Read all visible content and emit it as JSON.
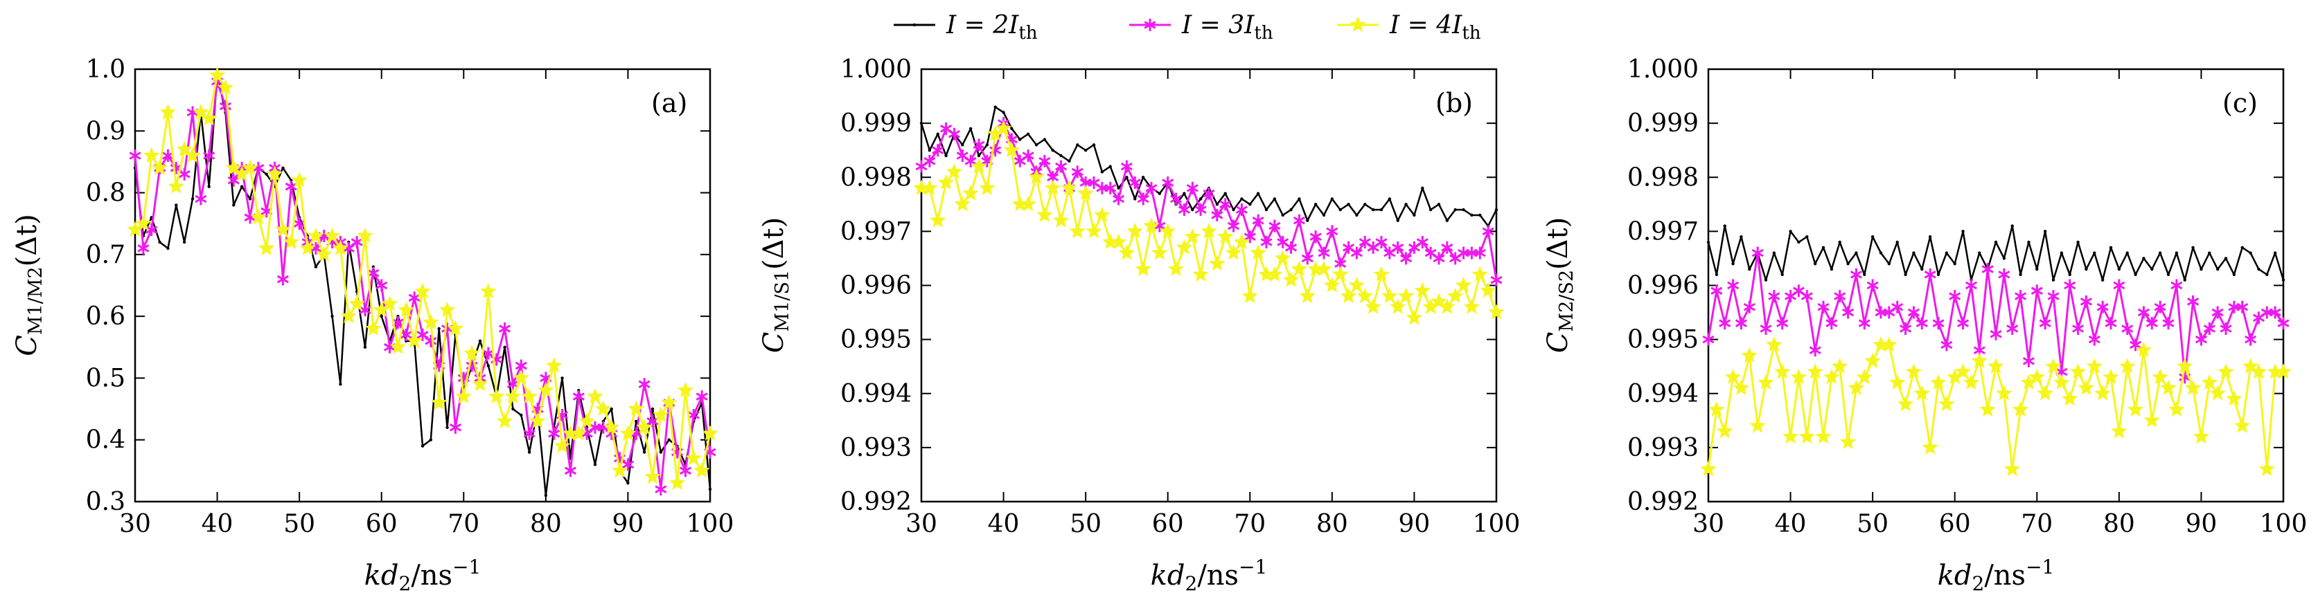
{
  "chart_data": [
    {
      "type": "line",
      "panel_label": "(a)",
      "xlabel": "kd2/ns−1",
      "ylabel": "CM1/M2(Δt)",
      "x": [
        30,
        31,
        32,
        33,
        34,
        35,
        36,
        37,
        38,
        39,
        40,
        41,
        42,
        43,
        44,
        45,
        46,
        47,
        48,
        49,
        50,
        51,
        52,
        53,
        54,
        55,
        56,
        57,
        58,
        59,
        60,
        61,
        62,
        63,
        64,
        65,
        66,
        67,
        68,
        69,
        70,
        71,
        72,
        73,
        74,
        75,
        76,
        77,
        78,
        79,
        80,
        81,
        82,
        83,
        84,
        85,
        86,
        87,
        88,
        89,
        90,
        91,
        92,
        93,
        94,
        95,
        96,
        97,
        98,
        99,
        100
      ],
      "xlim": [
        30,
        100
      ],
      "ylim": [
        0.3,
        1.0
      ],
      "xticks": [
        "30",
        "40",
        "50",
        "60",
        "70",
        "80",
        "90",
        "100"
      ],
      "yticks": [
        "0.3",
        "0.4",
        "0.5",
        "0.6",
        "0.7",
        "0.8",
        "0.9",
        "1.0"
      ],
      "series": [
        {
          "name": "I = 2Ith",
          "color": "#000000",
          "marker": "dot",
          "values": [
            0.84,
            0.73,
            0.76,
            0.72,
            0.71,
            0.78,
            0.72,
            0.79,
            0.93,
            0.81,
            0.99,
            0.93,
            0.78,
            0.81,
            0.79,
            0.84,
            0.83,
            0.81,
            0.84,
            0.82,
            0.76,
            0.73,
            0.68,
            0.7,
            0.6,
            0.49,
            0.72,
            0.64,
            0.55,
            0.68,
            0.6,
            0.56,
            0.6,
            0.56,
            0.56,
            0.39,
            0.4,
            0.58,
            0.42,
            0.57,
            0.48,
            0.52,
            0.56,
            0.52,
            0.47,
            0.55,
            0.45,
            0.44,
            0.38,
            0.45,
            0.31,
            0.42,
            0.5,
            0.37,
            0.48,
            0.42,
            0.36,
            0.43,
            0.45,
            0.35,
            0.33,
            0.43,
            0.38,
            0.45,
            0.38,
            0.4,
            0.39,
            0.36,
            0.43,
            0.46,
            0.32
          ]
        },
        {
          "name": "I = 3Ith",
          "color": "#ee1aee",
          "marker": "asterisk",
          "values": [
            0.86,
            0.71,
            0.74,
            0.84,
            0.86,
            0.84,
            0.83,
            0.93,
            0.79,
            0.86,
            0.98,
            0.94,
            0.82,
            0.84,
            0.76,
            0.84,
            0.77,
            0.84,
            0.66,
            0.81,
            0.75,
            0.72,
            0.71,
            0.73,
            0.72,
            0.72,
            0.71,
            0.72,
            0.61,
            0.67,
            0.65,
            0.55,
            0.59,
            0.57,
            0.63,
            0.57,
            0.56,
            0.52,
            0.58,
            0.42,
            0.5,
            0.52,
            0.5,
            0.54,
            0.53,
            0.58,
            0.49,
            0.52,
            0.41,
            0.45,
            0.5,
            0.41,
            0.44,
            0.35,
            0.47,
            0.41,
            0.42,
            0.42,
            0.41,
            0.37,
            0.36,
            0.41,
            0.49,
            0.43,
            0.32,
            0.46,
            0.38,
            0.35,
            0.44,
            0.47,
            0.38
          ]
        },
        {
          "name": "I = 4Ith",
          "color": "#f5f51e",
          "marker": "star",
          "values": [
            0.74,
            0.75,
            0.86,
            0.84,
            0.93,
            0.81,
            0.87,
            0.86,
            0.93,
            0.92,
            0.99,
            0.97,
            0.84,
            0.83,
            0.84,
            0.76,
            0.71,
            0.83,
            0.74,
            0.72,
            0.82,
            0.71,
            0.73,
            0.7,
            0.73,
            0.71,
            0.6,
            0.62,
            0.73,
            0.58,
            0.61,
            0.62,
            0.55,
            0.61,
            0.56,
            0.64,
            0.59,
            0.46,
            0.61,
            0.58,
            0.47,
            0.54,
            0.49,
            0.64,
            0.47,
            0.43,
            0.47,
            0.5,
            0.47,
            0.43,
            0.48,
            0.52,
            0.39,
            0.41,
            0.41,
            0.43,
            0.47,
            0.45,
            0.42,
            0.35,
            0.41,
            0.45,
            0.42,
            0.34,
            0.44,
            0.46,
            0.33,
            0.48,
            0.37,
            0.35,
            0.41
          ]
        }
      ]
    },
    {
      "type": "line",
      "panel_label": "(b)",
      "xlabel": "kd2/ns−1",
      "ylabel": "CM1/S1(Δt)",
      "x": [
        30,
        31,
        32,
        33,
        34,
        35,
        36,
        37,
        38,
        39,
        40,
        41,
        42,
        43,
        44,
        45,
        46,
        47,
        48,
        49,
        50,
        51,
        52,
        53,
        54,
        55,
        56,
        57,
        58,
        59,
        60,
        61,
        62,
        63,
        64,
        65,
        66,
        67,
        68,
        69,
        70,
        71,
        72,
        73,
        74,
        75,
        76,
        77,
        78,
        79,
        80,
        81,
        82,
        83,
        84,
        85,
        86,
        87,
        88,
        89,
        90,
        91,
        92,
        93,
        94,
        95,
        96,
        97,
        98,
        99,
        100
      ],
      "xlim": [
        30,
        100
      ],
      "ylim": [
        0.992,
        1.0
      ],
      "xticks": [
        "30",
        "40",
        "50",
        "60",
        "70",
        "80",
        "90",
        "100"
      ],
      "yticks": [
        "0.992",
        "0.993",
        "0.994",
        "0.995",
        "0.996",
        "0.997",
        "0.998",
        "0.999",
        "1.000"
      ],
      "series": [
        {
          "name": "I = 2Ith",
          "color": "#000000",
          "marker": "dot",
          "values": [
            0.999,
            0.9985,
            0.9988,
            0.9984,
            0.9988,
            0.9986,
            0.9989,
            0.9984,
            0.9986,
            0.9993,
            0.9992,
            0.9989,
            0.9987,
            0.9988,
            0.9986,
            0.9987,
            0.9985,
            0.9984,
            0.9983,
            0.9986,
            0.9985,
            0.9986,
            0.9981,
            0.9982,
            0.9978,
            0.998,
            0.9976,
            0.998,
            0.9978,
            0.9977,
            0.9979,
            0.9975,
            0.9977,
            0.9974,
            0.9976,
            0.9978,
            0.9975,
            0.9977,
            0.9974,
            0.9976,
            0.9975,
            0.9977,
            0.9974,
            0.9976,
            0.9973,
            0.9974,
            0.9976,
            0.9972,
            0.9975,
            0.9973,
            0.9976,
            0.9974,
            0.9975,
            0.9973,
            0.9975,
            0.9974,
            0.9974,
            0.9976,
            0.9972,
            0.9975,
            0.9973,
            0.9978,
            0.9974,
            0.9975,
            0.9972,
            0.9974,
            0.9974,
            0.9973,
            0.9973,
            0.9971,
            0.9974
          ]
        },
        {
          "name": "I = 3Ith",
          "color": "#ee1aee",
          "marker": "asterisk",
          "values": [
            0.9982,
            0.9983,
            0.9985,
            0.9989,
            0.9988,
            0.9984,
            0.9983,
            0.9986,
            0.9983,
            0.9985,
            0.999,
            0.9987,
            0.9983,
            0.9984,
            0.9981,
            0.9983,
            0.998,
            0.9982,
            0.9978,
            0.9981,
            0.9979,
            0.9979,
            0.9978,
            0.9978,
            0.9976,
            0.9982,
            0.9979,
            0.9976,
            0.9978,
            0.9971,
            0.9979,
            0.9976,
            0.9974,
            0.9978,
            0.9974,
            0.9977,
            0.9973,
            0.9975,
            0.9971,
            0.9974,
            0.9969,
            0.9972,
            0.9968,
            0.9971,
            0.9968,
            0.9967,
            0.9972,
            0.9965,
            0.9969,
            0.9966,
            0.997,
            0.9964,
            0.9967,
            0.9966,
            0.9968,
            0.9967,
            0.9968,
            0.9966,
            0.9967,
            0.9965,
            0.9967,
            0.9968,
            0.9966,
            0.9965,
            0.9967,
            0.9965,
            0.9966,
            0.9966,
            0.9966,
            0.997,
            0.9961
          ]
        },
        {
          "name": "I = 4Ith",
          "color": "#f5f51e",
          "marker": "star",
          "values": [
            0.9978,
            0.9978,
            0.9972,
            0.9979,
            0.9981,
            0.9975,
            0.9977,
            0.9982,
            0.9978,
            0.9988,
            0.9989,
            0.9985,
            0.9975,
            0.9975,
            0.998,
            0.9973,
            0.9978,
            0.9972,
            0.9978,
            0.997,
            0.9977,
            0.997,
            0.9973,
            0.9968,
            0.9968,
            0.9966,
            0.997,
            0.9963,
            0.9971,
            0.9966,
            0.997,
            0.9963,
            0.9967,
            0.9969,
            0.9962,
            0.997,
            0.9964,
            0.9969,
            0.9966,
            0.9968,
            0.9958,
            0.9966,
            0.9962,
            0.9962,
            0.9965,
            0.9961,
            0.9963,
            0.9958,
            0.9963,
            0.9963,
            0.996,
            0.9962,
            0.9958,
            0.996,
            0.9958,
            0.9956,
            0.9962,
            0.9958,
            0.9956,
            0.9958,
            0.9954,
            0.9959,
            0.9956,
            0.9957,
            0.9956,
            0.9958,
            0.996,
            0.9956,
            0.9962,
            0.9959,
            0.9955
          ]
        }
      ]
    },
    {
      "type": "line",
      "panel_label": "(c)",
      "xlabel": "kd2/ns−1",
      "ylabel": "CM2/S2(Δt)",
      "x": [
        30,
        31,
        32,
        33,
        34,
        35,
        36,
        37,
        38,
        39,
        40,
        41,
        42,
        43,
        44,
        45,
        46,
        47,
        48,
        49,
        50,
        51,
        52,
        53,
        54,
        55,
        56,
        57,
        58,
        59,
        60,
        61,
        62,
        63,
        64,
        65,
        66,
        67,
        68,
        69,
        70,
        71,
        72,
        73,
        74,
        75,
        76,
        77,
        78,
        79,
        80,
        81,
        82,
        83,
        84,
        85,
        86,
        87,
        88,
        89,
        90,
        91,
        92,
        93,
        94,
        95,
        96,
        97,
        98,
        99,
        100
      ],
      "xlim": [
        30,
        100
      ],
      "ylim": [
        0.992,
        1.0
      ],
      "xticks": [
        "30",
        "40",
        "50",
        "60",
        "70",
        "80",
        "90",
        "100"
      ],
      "yticks": [
        "0.992",
        "0.993",
        "0.994",
        "0.995",
        "0.996",
        "0.997",
        "0.998",
        "0.999",
        "1.000"
      ],
      "series": [
        {
          "name": "I = 2Ith",
          "color": "#000000",
          "marker": "dot",
          "values": [
            0.9968,
            0.9962,
            0.9971,
            0.9964,
            0.9969,
            0.9963,
            0.9966,
            0.9961,
            0.9966,
            0.9962,
            0.997,
            0.9968,
            0.9969,
            0.9964,
            0.9967,
            0.9963,
            0.9968,
            0.9964,
            0.9966,
            0.9962,
            0.9969,
            0.9966,
            0.9964,
            0.9968,
            0.9962,
            0.9966,
            0.9963,
            0.9969,
            0.9962,
            0.9966,
            0.9964,
            0.997,
            0.9961,
            0.9966,
            0.9963,
            0.9968,
            0.9965,
            0.9971,
            0.9962,
            0.9968,
            0.9963,
            0.997,
            0.9961,
            0.9966,
            0.9962,
            0.9968,
            0.9963,
            0.9966,
            0.9961,
            0.9967,
            0.9963,
            0.9966,
            0.9962,
            0.9965,
            0.9963,
            0.9966,
            0.9962,
            0.9966,
            0.9961,
            0.9967,
            0.9963,
            0.9966,
            0.9963,
            0.9965,
            0.9962,
            0.9967,
            0.9966,
            0.9963,
            0.9962,
            0.9966,
            0.9961
          ]
        },
        {
          "name": "I = 3Ith",
          "color": "#ee1aee",
          "marker": "asterisk",
          "values": [
            0.995,
            0.9959,
            0.9953,
            0.996,
            0.9953,
            0.9956,
            0.9966,
            0.9952,
            0.9958,
            0.9953,
            0.9958,
            0.9959,
            0.9958,
            0.9948,
            0.9956,
            0.9953,
            0.9958,
            0.9955,
            0.9962,
            0.9953,
            0.996,
            0.9955,
            0.9955,
            0.9956,
            0.9952,
            0.9955,
            0.9953,
            0.9962,
            0.9953,
            0.9949,
            0.9958,
            0.9953,
            0.996,
            0.9948,
            0.9963,
            0.9951,
            0.9962,
            0.9952,
            0.9958,
            0.9946,
            0.9959,
            0.9953,
            0.9958,
            0.9944,
            0.996,
            0.9952,
            0.9957,
            0.995,
            0.9956,
            0.9953,
            0.996,
            0.9952,
            0.9949,
            0.9955,
            0.9953,
            0.9956,
            0.9953,
            0.996,
            0.9943,
            0.9957,
            0.995,
            0.9952,
            0.9955,
            0.9952,
            0.9956,
            0.9956,
            0.995,
            0.9954,
            0.9955,
            0.9955,
            0.9953
          ]
        },
        {
          "name": "I = 4Ith",
          "color": "#f5f51e",
          "marker": "star",
          "values": [
            0.9926,
            0.9937,
            0.9933,
            0.9943,
            0.9941,
            0.9947,
            0.9934,
            0.9942,
            0.9949,
            0.9944,
            0.9932,
            0.9943,
            0.9932,
            0.9944,
            0.9932,
            0.9943,
            0.9945,
            0.9931,
            0.9941,
            0.9943,
            0.9946,
            0.9949,
            0.9949,
            0.9942,
            0.9938,
            0.9944,
            0.994,
            0.993,
            0.9942,
            0.9938,
            0.9943,
            0.9944,
            0.9942,
            0.9946,
            0.9937,
            0.9945,
            0.994,
            0.9926,
            0.9937,
            0.9942,
            0.9943,
            0.994,
            0.9945,
            0.9942,
            0.9939,
            0.9944,
            0.9941,
            0.9945,
            0.994,
            0.9943,
            0.9933,
            0.9945,
            0.9937,
            0.9948,
            0.9935,
            0.9943,
            0.9941,
            0.9937,
            0.9945,
            0.9941,
            0.9932,
            0.9942,
            0.994,
            0.9944,
            0.9939,
            0.9934,
            0.9945,
            0.9944,
            0.9926,
            0.9944,
            0.9944
          ]
        }
      ]
    }
  ],
  "legend": {
    "items": [
      {
        "prefix": "I = 2I",
        "sub": "th",
        "color": "#000000",
        "marker": "dot"
      },
      {
        "prefix": "I = 3I",
        "sub": "th",
        "color": "#ee1aee",
        "marker": "asterisk"
      },
      {
        "prefix": "I = 4I",
        "sub": "th",
        "color": "#f5f51e",
        "marker": "star"
      }
    ]
  },
  "axis_texts": {
    "xlabel_main": "kd",
    "xlabel_sub": "2",
    "xlabel_unit": "/ns",
    "xlabel_sup": "−1",
    "ylabel_prefix": "C",
    "ylabel_a_sub": "M1/M2",
    "ylabel_b_sub": "M1/S1",
    "ylabel_c_sub": "M2/S2",
    "ylabel_arg": "(Δt)"
  }
}
